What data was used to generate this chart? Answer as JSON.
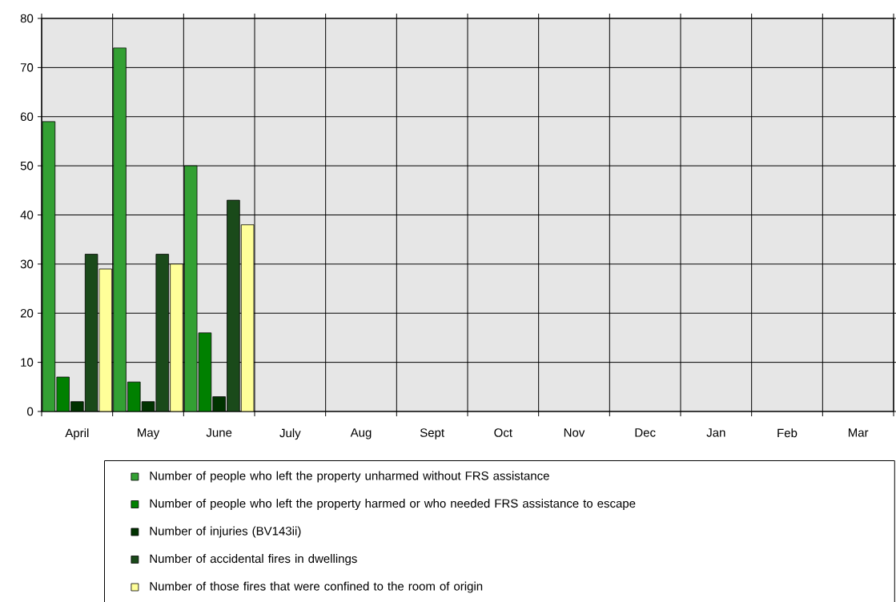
{
  "chart_data": {
    "type": "bar",
    "categories": [
      "April",
      "May",
      "June",
      "July",
      "Aug",
      "Sept",
      "Oct",
      "Nov",
      "Dec",
      "Jan",
      "Feb",
      "Mar"
    ],
    "series": [
      {
        "name": "Number of people who left the property unharmed without FRS assistance",
        "color": "#33a033",
        "values": [
          59,
          74,
          50,
          null,
          null,
          null,
          null,
          null,
          null,
          null,
          null,
          null
        ]
      },
      {
        "name": "Number of people who left the property harmed or who needed FRS assistance to escape",
        "color": "#008000",
        "values": [
          7,
          6,
          16,
          null,
          null,
          null,
          null,
          null,
          null,
          null,
          null,
          null
        ]
      },
      {
        "name": "Number of injuries (BV143ii)",
        "color": "#003300",
        "values": [
          2,
          2,
          3,
          null,
          null,
          null,
          null,
          null,
          null,
          null,
          null,
          null
        ]
      },
      {
        "name": "Number of accidental fires in dwellings",
        "color": "#1a4a1a",
        "values": [
          32,
          32,
          43,
          null,
          null,
          null,
          null,
          null,
          null,
          null,
          null,
          null
        ]
      },
      {
        "name": "Number of those fires that were confined to the room of origin",
        "color": "#ffff99",
        "values": [
          29,
          30,
          38,
          null,
          null,
          null,
          null,
          null,
          null,
          null,
          null,
          null
        ]
      }
    ],
    "ylim": [
      0,
      80
    ],
    "yticks": [
      0,
      10,
      20,
      30,
      40,
      50,
      60,
      70,
      80
    ],
    "grid": true,
    "legend": "bottom"
  }
}
